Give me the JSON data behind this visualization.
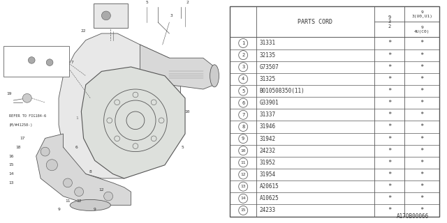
{
  "doc_id": "A17OB00066",
  "rows": [
    [
      "1",
      "31331",
      "*",
      "*"
    ],
    [
      "2",
      "32135",
      "*",
      "*"
    ],
    [
      "3",
      "G73507",
      "*",
      "*"
    ],
    [
      "4",
      "31325",
      "*",
      "*"
    ],
    [
      "5",
      "B010508350(11)",
      "*",
      "*"
    ],
    [
      "6",
      "G33901",
      "*",
      "*"
    ],
    [
      "7",
      "31337",
      "*",
      "*"
    ],
    [
      "8",
      "31946",
      "*",
      "*"
    ],
    [
      "9",
      "31942",
      "*",
      "*"
    ],
    [
      "10",
      "24232",
      "*",
      "*"
    ],
    [
      "11",
      "31952",
      "*",
      "*"
    ],
    [
      "12",
      "31954",
      "*",
      "*"
    ],
    [
      "13",
      "A20615",
      "*",
      "*"
    ],
    [
      "14",
      "A10625",
      "*",
      "*"
    ],
    [
      "15",
      "24233",
      "*",
      "*"
    ]
  ],
  "bg_color": "#ffffff",
  "line_color": "#555555",
  "text_color": "#333333",
  "font_size": 6.0
}
